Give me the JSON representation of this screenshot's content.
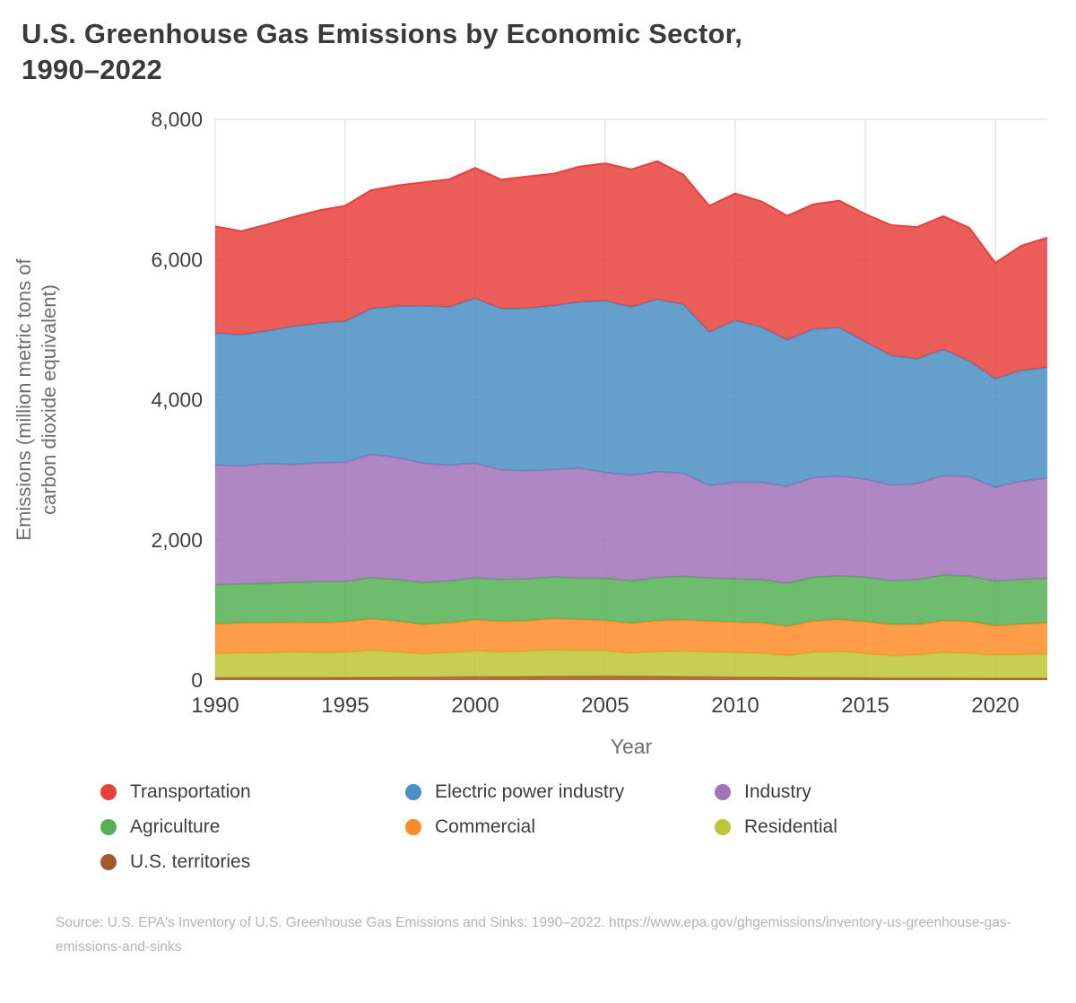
{
  "title": "U.S. Greenhouse Gas Emissions by Economic Sector, 1990–2022",
  "source": "Source: U.S. EPA's Inventory of U.S. Greenhouse Gas Emissions and Sinks: 1990–2022. https://www.epa.gov/ghgemissions/inventory-us-greenhouse-gas-emissions-and-sinks",
  "chart_data": {
    "type": "area",
    "stacked": true,
    "title": "U.S. Greenhouse Gas Emissions by Economic Sector, 1990–2022",
    "xlabel": "Year",
    "ylabel": "Emissions (million metric tons of carbon dioxide equivalent)",
    "ylabel_lines": [
      "Emissions (million metric tons of",
      "carbon dioxide equivalent)"
    ],
    "grid": true,
    "legend_position": "bottom",
    "ylim": [
      0,
      8000
    ],
    "y_ticks": [
      0,
      2000,
      4000,
      6000,
      8000
    ],
    "x_ticks": [
      1990,
      1995,
      2000,
      2005,
      2010,
      2015,
      2020
    ],
    "x": [
      1990,
      1991,
      1992,
      1993,
      1994,
      1995,
      1996,
      1997,
      1998,
      1999,
      2000,
      2001,
      2002,
      2003,
      2004,
      2005,
      2006,
      2007,
      2008,
      2009,
      2010,
      2011,
      2012,
      2013,
      2014,
      2015,
      2016,
      2017,
      2018,
      2019,
      2020,
      2021,
      2022
    ],
    "series": [
      {
        "name": "U.S. territories",
        "color": "#a3582b",
        "values": [
          33,
          34,
          35,
          35,
          36,
          37,
          39,
          40,
          42,
          44,
          46,
          48,
          50,
          52,
          54,
          56,
          54,
          52,
          50,
          45,
          42,
          40,
          38,
          36,
          34,
          32,
          30,
          28,
          28,
          27,
          26,
          26,
          26
        ]
      },
      {
        "name": "Residential",
        "color": "#bcc636",
        "values": [
          345,
          350,
          350,
          365,
          355,
          360,
          385,
          360,
          330,
          350,
          370,
          355,
          360,
          380,
          370,
          360,
          330,
          355,
          365,
          355,
          350,
          340,
          310,
          360,
          375,
          345,
          320,
          330,
          365,
          355,
          330,
          340,
          345
        ]
      },
      {
        "name": "Commercial",
        "color": "#ff8b28",
        "values": [
          425,
          430,
          430,
          425,
          430,
          435,
          450,
          440,
          420,
          425,
          445,
          435,
          435,
          445,
          440,
          435,
          425,
          440,
          445,
          440,
          435,
          435,
          420,
          445,
          455,
          455,
          440,
          435,
          455,
          455,
          420,
          430,
          445
        ]
      },
      {
        "name": "Agriculture",
        "color": "#55b054",
        "values": [
          555,
          560,
          565,
          570,
          580,
          575,
          585,
          595,
          600,
          595,
          595,
          600,
          600,
          595,
          590,
          600,
          605,
          615,
          620,
          615,
          615,
          615,
          615,
          625,
          625,
          635,
          630,
          640,
          650,
          645,
          635,
          640,
          635
        ]
      },
      {
        "name": "Industry",
        "color": "#a173b8",
        "values": [
          1710,
          1680,
          1710,
          1680,
          1700,
          1700,
          1760,
          1740,
          1700,
          1650,
          1640,
          1560,
          1540,
          1530,
          1570,
          1510,
          1510,
          1510,
          1470,
          1320,
          1380,
          1390,
          1380,
          1420,
          1420,
          1400,
          1360,
          1370,
          1420,
          1420,
          1340,
          1400,
          1430
        ]
      },
      {
        "name": "Electric power industry",
        "color": "#4a8fc4",
        "values": [
          1880,
          1870,
          1890,
          1970,
          1990,
          2010,
          2080,
          2160,
          2250,
          2260,
          2350,
          2300,
          2320,
          2340,
          2370,
          2450,
          2400,
          2460,
          2410,
          2190,
          2310,
          2220,
          2090,
          2120,
          2120,
          1960,
          1850,
          1780,
          1800,
          1650,
          1550,
          1580,
          1580
        ]
      },
      {
        "name": "Transportation",
        "color": "#e8413c",
        "values": [
          1525,
          1480,
          1520,
          1560,
          1610,
          1650,
          1690,
          1720,
          1760,
          1820,
          1860,
          1840,
          1880,
          1880,
          1930,
          1960,
          1960,
          1970,
          1850,
          1800,
          1810,
          1790,
          1770,
          1780,
          1810,
          1820,
          1860,
          1880,
          1900,
          1900,
          1650,
          1780,
          1850
        ]
      }
    ]
  },
  "legend": {
    "items": [
      {
        "label": "Transportation",
        "color": "#e8413c"
      },
      {
        "label": "Electric power industry",
        "color": "#4a8fc4"
      },
      {
        "label": "Industry",
        "color": "#a173b8"
      },
      {
        "label": "Agriculture",
        "color": "#55b054"
      },
      {
        "label": "Commercial",
        "color": "#ff8b28"
      },
      {
        "label": "Residential",
        "color": "#bcc636"
      },
      {
        "label": "U.S. territories",
        "color": "#a3582b"
      }
    ]
  }
}
